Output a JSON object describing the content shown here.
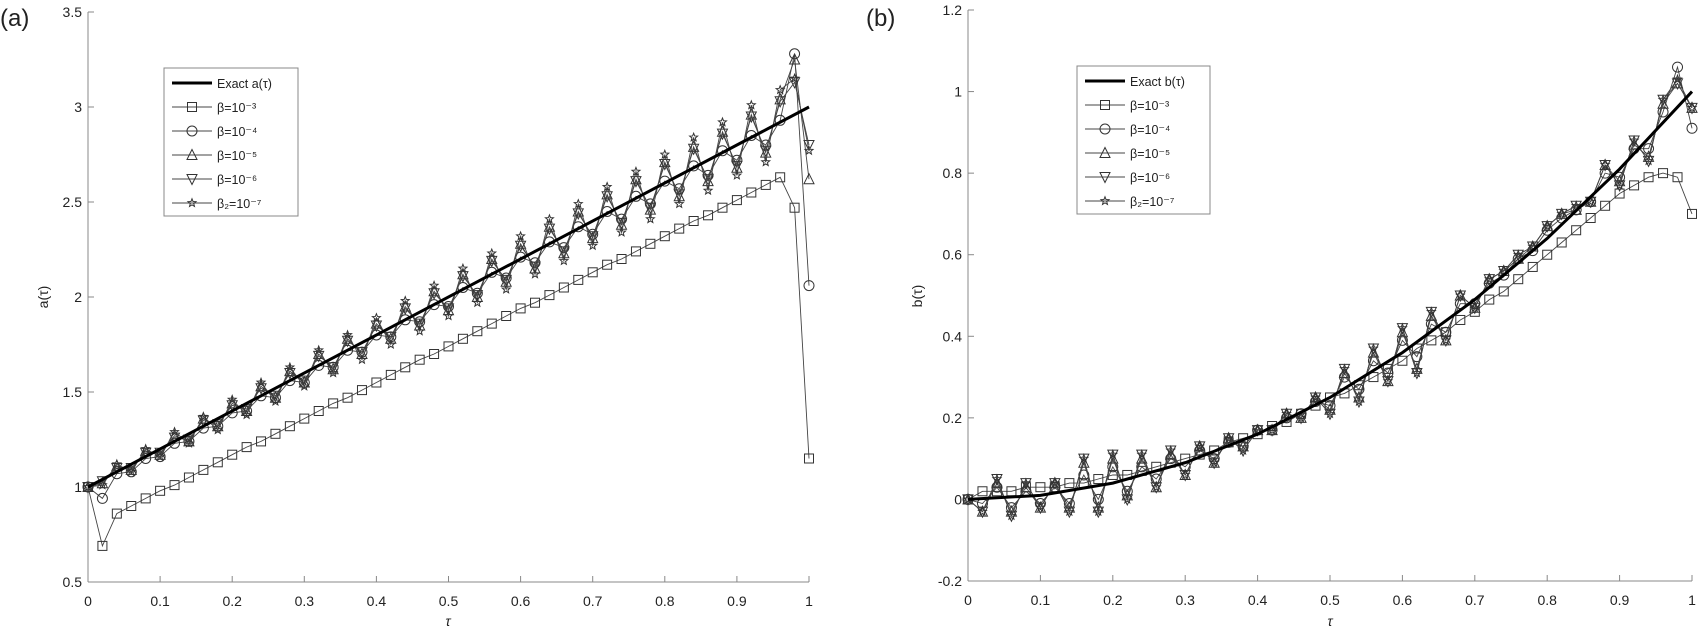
{
  "chart_data": [
    {
      "panel_label": "(a)",
      "type": "line",
      "xlabel": "τ",
      "ylabel": "a(τ)",
      "xlim": [
        0,
        1
      ],
      "ylim": [
        0.5,
        3.5
      ],
      "xticks": [
        "0",
        "0.1",
        "0.2",
        "0.3",
        "0.4",
        "0.5",
        "0.6",
        "0.7",
        "0.8",
        "0.9",
        "1"
      ],
      "yticks": [
        "0.5",
        "1",
        "1.5",
        "2",
        "2.5",
        "3",
        "3.5"
      ],
      "grid": false,
      "legend_position": "upper-left",
      "x": [
        0,
        0.02,
        0.04,
        0.06,
        0.08,
        0.1,
        0.12,
        0.14,
        0.16,
        0.18,
        0.2,
        0.22,
        0.24,
        0.26,
        0.28,
        0.3,
        0.32,
        0.34,
        0.36,
        0.38,
        0.4,
        0.42,
        0.44,
        0.46,
        0.48,
        0.5,
        0.52,
        0.54,
        0.56,
        0.58,
        0.6,
        0.62,
        0.64,
        0.66,
        0.68,
        0.7,
        0.72,
        0.74,
        0.76,
        0.78,
        0.8,
        0.82,
        0.84,
        0.86,
        0.88,
        0.9,
        0.92,
        0.94,
        0.96,
        0.98,
        1
      ],
      "exact": {
        "name": "Exact a(τ)",
        "x": [
          0,
          1
        ],
        "values": [
          1,
          3
        ]
      },
      "series": [
        {
          "name": "β=10⁻³",
          "marker": "square",
          "values": [
            1.0,
            0.69,
            0.86,
            0.9,
            0.94,
            0.98,
            1.01,
            1.05,
            1.09,
            1.13,
            1.17,
            1.21,
            1.24,
            1.28,
            1.32,
            1.36,
            1.4,
            1.44,
            1.47,
            1.51,
            1.55,
            1.59,
            1.63,
            1.67,
            1.7,
            1.74,
            1.78,
            1.82,
            1.86,
            1.9,
            1.94,
            1.97,
            2.01,
            2.05,
            2.09,
            2.13,
            2.17,
            2.2,
            2.24,
            2.28,
            2.32,
            2.36,
            2.4,
            2.43,
            2.47,
            2.51,
            2.55,
            2.59,
            2.63,
            2.47,
            1.15
          ]
        },
        {
          "name": "β=10⁻⁴",
          "marker": "circle",
          "values": [
            1.0,
            0.94,
            1.07,
            1.08,
            1.15,
            1.16,
            1.23,
            1.24,
            1.31,
            1.32,
            1.39,
            1.4,
            1.48,
            1.47,
            1.56,
            1.55,
            1.64,
            1.63,
            1.72,
            1.71,
            1.8,
            1.79,
            1.88,
            1.87,
            1.96,
            1.95,
            2.05,
            2.02,
            2.13,
            2.1,
            2.21,
            2.18,
            2.29,
            2.26,
            2.37,
            2.33,
            2.45,
            2.41,
            2.53,
            2.49,
            2.61,
            2.57,
            2.69,
            2.64,
            2.77,
            2.72,
            2.85,
            2.8,
            2.93,
            3.28,
            2.06
          ]
        },
        {
          "name": "β=10⁻⁵",
          "marker": "triangle-up",
          "values": [
            1.0,
            1.02,
            1.11,
            1.09,
            1.19,
            1.17,
            1.27,
            1.24,
            1.36,
            1.32,
            1.44,
            1.4,
            1.53,
            1.47,
            1.61,
            1.55,
            1.7,
            1.62,
            1.78,
            1.7,
            1.86,
            1.78,
            1.95,
            1.85,
            2.03,
            1.93,
            2.12,
            2.0,
            2.2,
            2.08,
            2.28,
            2.15,
            2.37,
            2.23,
            2.45,
            2.31,
            2.54,
            2.38,
            2.62,
            2.46,
            2.71,
            2.53,
            2.79,
            2.61,
            2.87,
            2.68,
            2.96,
            2.76,
            3.04,
            3.25,
            2.62
          ]
        },
        {
          "name": "β=10⁻⁶",
          "marker": "triangle-down",
          "values": [
            1.0,
            1.03,
            1.1,
            1.1,
            1.18,
            1.18,
            1.26,
            1.25,
            1.35,
            1.33,
            1.43,
            1.41,
            1.52,
            1.48,
            1.6,
            1.56,
            1.69,
            1.63,
            1.77,
            1.71,
            1.85,
            1.79,
            1.94,
            1.86,
            2.02,
            1.94,
            2.11,
            2.01,
            2.19,
            2.09,
            2.27,
            2.16,
            2.36,
            2.24,
            2.44,
            2.32,
            2.53,
            2.39,
            2.61,
            2.47,
            2.7,
            2.54,
            2.78,
            2.62,
            2.86,
            2.69,
            2.95,
            2.77,
            3.03,
            3.13,
            2.8
          ]
        },
        {
          "name": "β₂=10⁻⁷",
          "marker": "star",
          "values": [
            1.0,
            1.01,
            1.12,
            1.08,
            1.2,
            1.16,
            1.29,
            1.23,
            1.37,
            1.3,
            1.46,
            1.38,
            1.55,
            1.45,
            1.63,
            1.53,
            1.72,
            1.6,
            1.8,
            1.67,
            1.89,
            1.75,
            1.98,
            1.82,
            2.06,
            1.9,
            2.15,
            1.97,
            2.23,
            2.04,
            2.32,
            2.12,
            2.41,
            2.19,
            2.49,
            2.27,
            2.58,
            2.34,
            2.66,
            2.41,
            2.75,
            2.49,
            2.84,
            2.56,
            2.92,
            2.64,
            3.01,
            2.71,
            3.09,
            3.15,
            2.77
          ]
        }
      ]
    },
    {
      "panel_label": "(b)",
      "type": "line",
      "xlabel": "τ",
      "ylabel": "b(τ)",
      "xlim": [
        0,
        1
      ],
      "ylim": [
        -0.2,
        1.2
      ],
      "xticks": [
        "0",
        "0.1",
        "0.2",
        "0.3",
        "0.4",
        "0.5",
        "0.6",
        "0.7",
        "0.8",
        "0.9",
        "1"
      ],
      "yticks": [
        "-0.2",
        "0",
        "0.2",
        "0.4",
        "0.6",
        "0.8",
        "1",
        "1.2"
      ],
      "grid": false,
      "legend_position": "upper-left",
      "x": [
        0,
        0.02,
        0.04,
        0.06,
        0.08,
        0.1,
        0.12,
        0.14,
        0.16,
        0.18,
        0.2,
        0.22,
        0.24,
        0.26,
        0.28,
        0.3,
        0.32,
        0.34,
        0.36,
        0.38,
        0.4,
        0.42,
        0.44,
        0.46,
        0.48,
        0.5,
        0.52,
        0.54,
        0.56,
        0.58,
        0.6,
        0.62,
        0.64,
        0.66,
        0.68,
        0.7,
        0.72,
        0.74,
        0.76,
        0.78,
        0.8,
        0.82,
        0.84,
        0.86,
        0.88,
        0.9,
        0.92,
        0.94,
        0.96,
        0.98,
        1
      ],
      "exact": {
        "name": "Exact b(τ)",
        "x": [
          0,
          0.1,
          0.2,
          0.3,
          0.4,
          0.5,
          0.6,
          0.7,
          0.8,
          0.9,
          1
        ],
        "values": [
          0,
          0.01,
          0.04,
          0.09,
          0.16,
          0.25,
          0.36,
          0.49,
          0.64,
          0.81,
          1
        ]
      },
      "series": [
        {
          "name": "β=10⁻³",
          "marker": "square",
          "values": [
            0,
            0.02,
            0.02,
            0.02,
            0.03,
            0.03,
            0.03,
            0.04,
            0.04,
            0.05,
            0.06,
            0.06,
            0.07,
            0.08,
            0.09,
            0.1,
            0.11,
            0.12,
            0.14,
            0.15,
            0.16,
            0.18,
            0.19,
            0.21,
            0.23,
            0.25,
            0.26,
            0.28,
            0.3,
            0.32,
            0.34,
            0.37,
            0.39,
            0.41,
            0.44,
            0.46,
            0.49,
            0.51,
            0.54,
            0.57,
            0.6,
            0.63,
            0.66,
            0.69,
            0.72,
            0.75,
            0.77,
            0.79,
            0.8,
            0.79,
            0.7
          ]
        },
        {
          "name": "β=10⁻⁴",
          "marker": "circle",
          "values": [
            0,
            -0.01,
            0.03,
            -0.02,
            0.02,
            -0.01,
            0.03,
            -0.01,
            0.06,
            0,
            0.08,
            0.02,
            0.08,
            0.05,
            0.1,
            0.08,
            0.12,
            0.1,
            0.14,
            0.13,
            0.17,
            0.17,
            0.2,
            0.21,
            0.24,
            0.23,
            0.3,
            0.27,
            0.34,
            0.31,
            0.39,
            0.35,
            0.43,
            0.41,
            0.48,
            0.48,
            0.53,
            0.55,
            0.59,
            0.61,
            0.66,
            0.69,
            0.71,
            0.73,
            0.8,
            0.79,
            0.86,
            0.86,
            0.95,
            1.06,
            0.91
          ]
        },
        {
          "name": "β=10⁻⁵",
          "marker": "triangle-up",
          "values": [
            0,
            -0.03,
            0.04,
            -0.03,
            0.03,
            -0.02,
            0.04,
            -0.02,
            0.09,
            -0.02,
            0.1,
            0.01,
            0.1,
            0.03,
            0.11,
            0.06,
            0.13,
            0.09,
            0.15,
            0.13,
            0.17,
            0.17,
            0.21,
            0.2,
            0.25,
            0.22,
            0.31,
            0.25,
            0.36,
            0.29,
            0.41,
            0.32,
            0.45,
            0.39,
            0.5,
            0.47,
            0.54,
            0.56,
            0.59,
            0.62,
            0.67,
            0.7,
            0.71,
            0.73,
            0.82,
            0.78,
            0.87,
            0.84,
            0.97,
            1.02,
            0.96
          ]
        },
        {
          "name": "β=10⁻⁶",
          "marker": "triangle-down",
          "values": [
            0,
            -0.03,
            0.05,
            -0.04,
            0.04,
            -0.02,
            0.04,
            -0.03,
            0.1,
            -0.03,
            0.11,
            0,
            0.11,
            0.03,
            0.12,
            0.06,
            0.13,
            0.09,
            0.15,
            0.12,
            0.17,
            0.17,
            0.21,
            0.2,
            0.25,
            0.21,
            0.32,
            0.24,
            0.37,
            0.29,
            0.42,
            0.31,
            0.46,
            0.39,
            0.5,
            0.47,
            0.54,
            0.56,
            0.6,
            0.62,
            0.67,
            0.7,
            0.72,
            0.73,
            0.82,
            0.77,
            0.88,
            0.83,
            0.98,
            1.02,
            0.96
          ]
        },
        {
          "name": "β₂=10⁻⁷",
          "marker": "star",
          "values": [
            0,
            -0.03,
            0.05,
            -0.04,
            0.04,
            -0.02,
            0.04,
            -0.03,
            0.1,
            -0.03,
            0.11,
            0,
            0.11,
            0.03,
            0.12,
            0.06,
            0.13,
            0.09,
            0.15,
            0.12,
            0.17,
            0.17,
            0.21,
            0.2,
            0.25,
            0.21,
            0.32,
            0.24,
            0.37,
            0.29,
            0.42,
            0.31,
            0.46,
            0.39,
            0.5,
            0.47,
            0.54,
            0.56,
            0.6,
            0.62,
            0.67,
            0.7,
            0.72,
            0.73,
            0.82,
            0.77,
            0.88,
            0.83,
            0.98,
            1.03,
            0.96
          ]
        }
      ]
    }
  ]
}
